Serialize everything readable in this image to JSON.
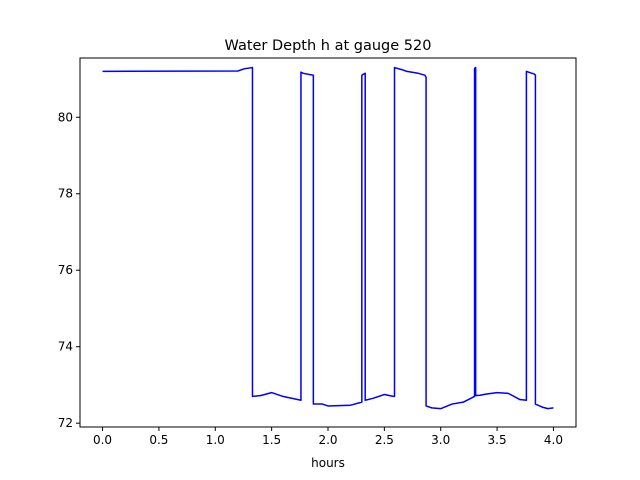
{
  "chart_data": {
    "type": "line",
    "title": "Water Depth h at gauge 520",
    "xlabel": "hours",
    "ylabel": "",
    "xlim": [
      -0.2,
      4.2
    ],
    "ylim": [
      71.9,
      81.55
    ],
    "grid": false,
    "x_ticks": [
      {
        "value": 0.0,
        "label": "0.0"
      },
      {
        "value": 0.5,
        "label": "0.5"
      },
      {
        "value": 1.0,
        "label": "1.0"
      },
      {
        "value": 1.5,
        "label": "1.5"
      },
      {
        "value": 2.0,
        "label": "2.0"
      },
      {
        "value": 2.5,
        "label": "2.5"
      },
      {
        "value": 3.0,
        "label": "3.0"
      },
      {
        "value": 3.5,
        "label": "3.5"
      },
      {
        "value": 4.0,
        "label": "4.0"
      }
    ],
    "y_ticks": [
      {
        "value": 72,
        "label": "72"
      },
      {
        "value": 74,
        "label": "74"
      },
      {
        "value": 76,
        "label": "76"
      },
      {
        "value": 78,
        "label": "78"
      },
      {
        "value": 80,
        "label": "80"
      }
    ],
    "series": [
      {
        "color": "#0000ff",
        "x": [
          0.0,
          1.2,
          1.26,
          1.33,
          1.33,
          1.4,
          1.5,
          1.6,
          1.76,
          1.76,
          1.78,
          1.87,
          1.87,
          1.9,
          1.95,
          2.0,
          2.1,
          2.2,
          2.3,
          2.3,
          2.31,
          2.33,
          2.33,
          2.4,
          2.5,
          2.58,
          2.59,
          2.59,
          2.65,
          2.7,
          2.8,
          2.86,
          2.87,
          2.87,
          2.92,
          3.0,
          3.1,
          3.2,
          3.3,
          3.3,
          3.31,
          3.31,
          3.35,
          3.4,
          3.5,
          3.6,
          3.7,
          3.76,
          3.76,
          3.78,
          3.83,
          3.84,
          3.84,
          3.9,
          3.95,
          4.0
        ],
        "y": [
          81.2,
          81.21,
          81.27,
          81.3,
          72.7,
          72.72,
          72.8,
          72.7,
          72.6,
          81.18,
          81.15,
          81.1,
          72.5,
          72.5,
          72.5,
          72.45,
          72.46,
          72.47,
          72.55,
          81.1,
          81.12,
          81.15,
          72.6,
          72.65,
          72.75,
          72.7,
          72.7,
          81.3,
          81.25,
          81.2,
          81.15,
          81.1,
          81.05,
          72.45,
          72.4,
          72.38,
          72.5,
          72.55,
          72.7,
          81.28,
          81.3,
          72.72,
          72.73,
          72.76,
          72.8,
          72.78,
          72.62,
          72.6,
          81.2,
          81.18,
          81.13,
          81.1,
          72.5,
          72.42,
          72.38,
          72.4
        ]
      }
    ]
  }
}
